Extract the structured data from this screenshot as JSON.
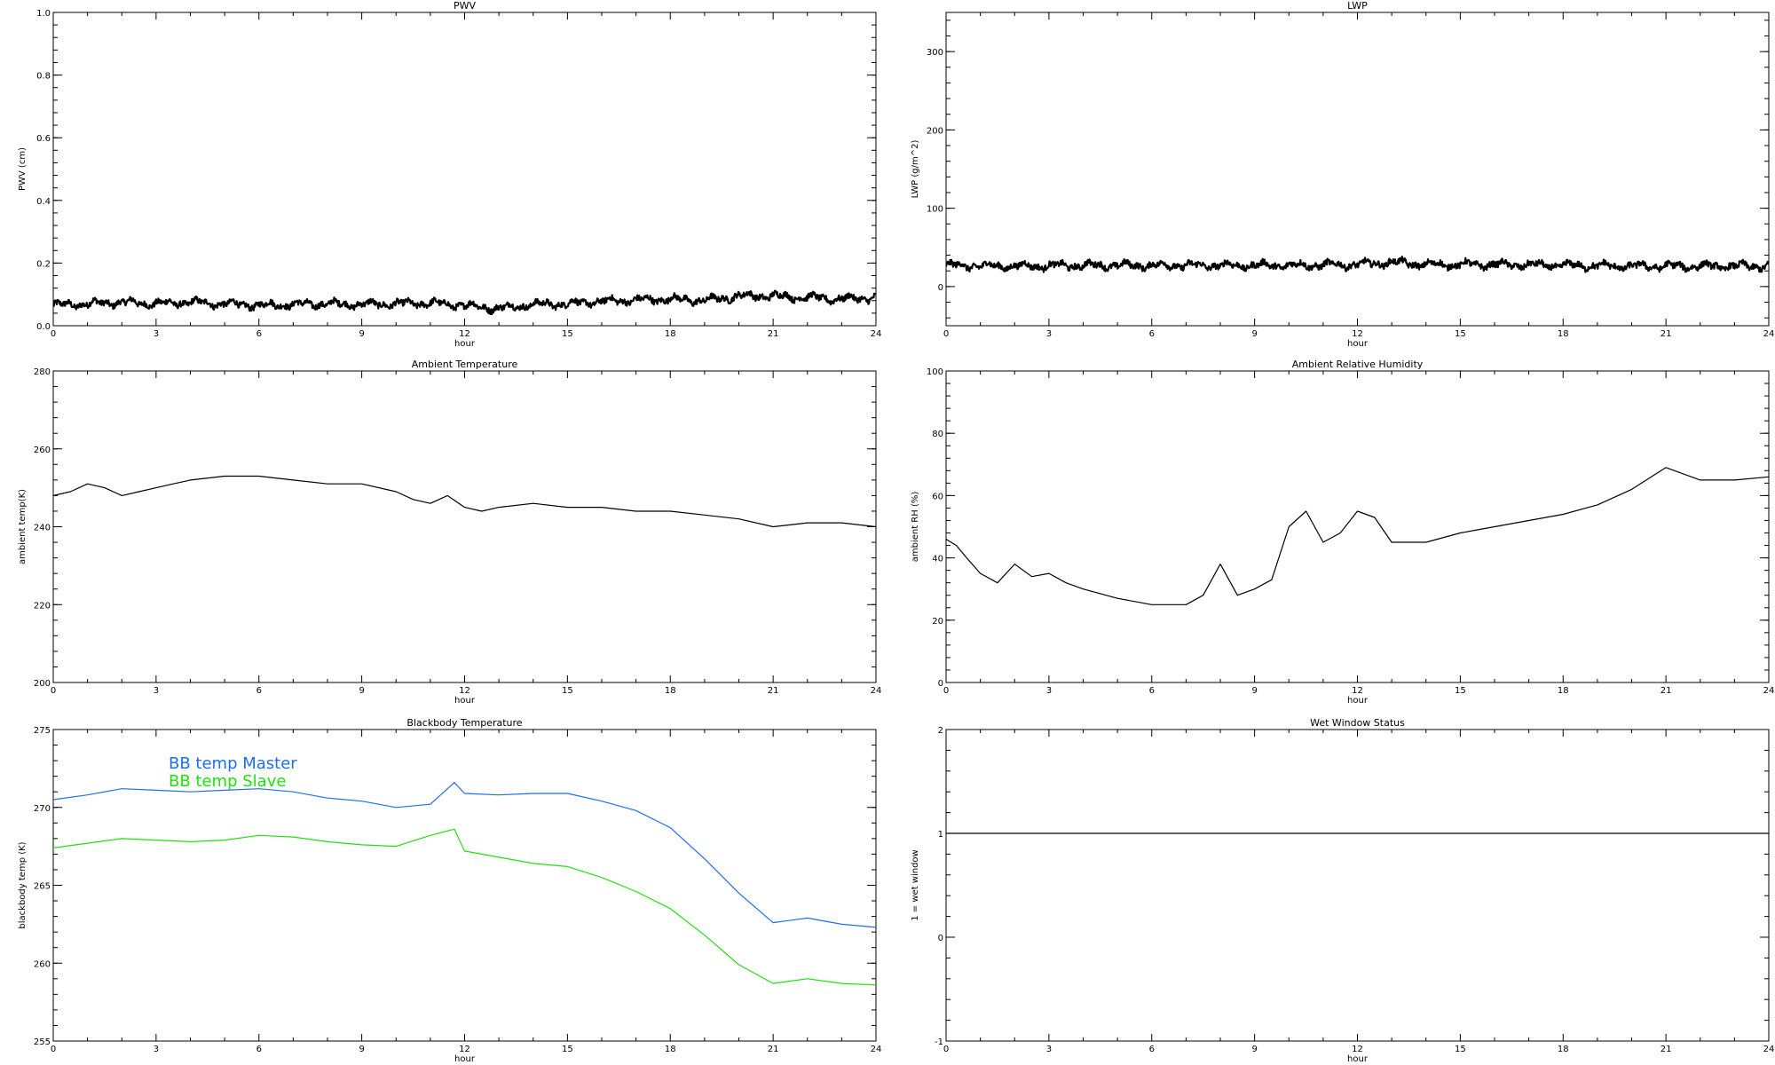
{
  "chart_data": [
    {
      "id": "pwv",
      "type": "line",
      "title": "PWV",
      "xlabel": "hour",
      "ylabel": "PWV (cm)",
      "xlim": [
        0,
        24
      ],
      "ylim": [
        0,
        1.0
      ],
      "xticks": [
        "0",
        "3",
        "6",
        "9",
        "12",
        "15",
        "18",
        "21",
        "24"
      ],
      "yticks": [
        "0.0",
        "0.2",
        "0.4",
        "0.6",
        "0.8",
        "1.0"
      ],
      "style": "noisy",
      "series": [
        {
          "color": "#000000",
          "x": [
            0,
            1,
            2,
            3,
            4,
            5,
            6,
            7,
            8,
            9,
            10,
            11,
            12,
            13,
            14,
            15,
            16,
            17,
            18,
            19,
            20,
            21,
            22,
            23,
            24
          ],
          "y": [
            0.065,
            0.07,
            0.075,
            0.07,
            0.075,
            0.07,
            0.065,
            0.068,
            0.07,
            0.068,
            0.07,
            0.072,
            0.065,
            0.055,
            0.068,
            0.07,
            0.078,
            0.082,
            0.085,
            0.08,
            0.095,
            0.095,
            0.09,
            0.085,
            0.09
          ]
        }
      ]
    },
    {
      "id": "lwp",
      "type": "line",
      "title": "LWP",
      "xlabel": "hour",
      "ylabel": "LWP (g/m^2)",
      "xlim": [
        0,
        24
      ],
      "ylim": [
        -50,
        350
      ],
      "xticks": [
        "0",
        "3",
        "6",
        "9",
        "12",
        "15",
        "18",
        "21",
        "24"
      ],
      "yticks": [
        "0",
        "100",
        "200",
        "300"
      ],
      "style": "noisy",
      "series": [
        {
          "color": "#000000",
          "x": [
            0,
            2,
            4,
            6,
            8,
            10,
            12,
            13,
            14,
            16,
            18,
            20,
            22,
            24
          ],
          "y": [
            27,
            26,
            27,
            27,
            27,
            27,
            28,
            31,
            28,
            28,
            27,
            26,
            26,
            26
          ]
        }
      ]
    },
    {
      "id": "ambient-temp",
      "type": "line",
      "title": "Ambient Temperature",
      "xlabel": "hour",
      "ylabel": "ambient temp(K)",
      "xlim": [
        0,
        24
      ],
      "ylim": [
        200,
        280
      ],
      "xticks": [
        "0",
        "3",
        "6",
        "9",
        "12",
        "15",
        "18",
        "21",
        "24"
      ],
      "yticks": [
        "200",
        "220",
        "240",
        "260",
        "280"
      ],
      "style": "line",
      "series": [
        {
          "color": "#000000",
          "x": [
            0,
            0.5,
            1,
            1.5,
            2,
            2.5,
            3,
            3.5,
            4,
            5,
            6,
            7,
            8,
            9,
            10,
            10.5,
            11,
            11.5,
            12,
            12.5,
            13,
            14,
            15,
            16,
            17,
            18,
            19,
            20,
            21,
            22,
            23,
            24
          ],
          "y": [
            248,
            249,
            251,
            250,
            248,
            249,
            250,
            251,
            252,
            253,
            253,
            252,
            251,
            251,
            249,
            247,
            246,
            248,
            245,
            244,
            245,
            246,
            245,
            245,
            244,
            244,
            243,
            242,
            240,
            241,
            241,
            240
          ]
        }
      ]
    },
    {
      "id": "ambient-rh",
      "type": "line",
      "title": "Ambient Relative Humidity",
      "xlabel": "hour",
      "ylabel": "ambient RH (%)",
      "xlim": [
        0,
        24
      ],
      "ylim": [
        0,
        100
      ],
      "xticks": [
        "0",
        "3",
        "6",
        "9",
        "12",
        "15",
        "18",
        "21",
        "24"
      ],
      "yticks": [
        "0",
        "20",
        "40",
        "60",
        "80",
        "100"
      ],
      "style": "line",
      "series": [
        {
          "color": "#000000",
          "x": [
            0,
            0.3,
            0.6,
            1,
            1.5,
            2,
            2.5,
            3,
            3.5,
            4,
            5,
            6,
            7,
            7.5,
            8,
            8.5,
            9,
            9.5,
            10,
            10.5,
            11,
            11.5,
            12,
            12.5,
            13,
            14,
            15,
            16,
            17,
            18,
            19,
            20,
            21,
            22,
            23,
            24
          ],
          "y": [
            46,
            44,
            40,
            35,
            32,
            38,
            34,
            35,
            32,
            30,
            27,
            25,
            25,
            28,
            38,
            28,
            30,
            33,
            50,
            55,
            45,
            48,
            55,
            53,
            45,
            45,
            48,
            50,
            52,
            54,
            57,
            62,
            69,
            65,
            65,
            66
          ]
        }
      ]
    },
    {
      "id": "blackbody-temp",
      "type": "line",
      "title": "Blackbody Temperature",
      "xlabel": "hour",
      "ylabel": "blackbody temp (K)",
      "xlim": [
        0,
        24
      ],
      "ylim": [
        255,
        275
      ],
      "xticks": [
        "0",
        "3",
        "6",
        "9",
        "12",
        "15",
        "18",
        "21",
        "24"
      ],
      "yticks": [
        "255",
        "260",
        "265",
        "270",
        "275"
      ],
      "style": "line",
      "legend": "top-left",
      "series": [
        {
          "name": "BB temp Master",
          "color": "#1e6ef0",
          "x": [
            0,
            1,
            2,
            3,
            4,
            5,
            6,
            7,
            8,
            9,
            10,
            11,
            11.7,
            12,
            13,
            14,
            15,
            16,
            17,
            18,
            19,
            20,
            21,
            22,
            23,
            24
          ],
          "y": [
            270.5,
            270.8,
            271.2,
            271.1,
            271.0,
            271.1,
            271.2,
            271.0,
            270.6,
            270.4,
            270.0,
            270.2,
            271.6,
            270.9,
            270.8,
            270.9,
            270.9,
            270.4,
            269.8,
            268.7,
            266.7,
            264.5,
            262.6,
            262.9,
            262.5,
            262.3
          ]
        },
        {
          "name": "BB temp Slave",
          "color": "#22e010",
          "x": [
            0,
            1,
            2,
            3,
            4,
            5,
            6,
            7,
            8,
            9,
            10,
            11,
            11.7,
            12,
            13,
            14,
            15,
            16,
            17,
            18,
            19,
            20,
            21,
            22,
            23,
            24
          ],
          "y": [
            267.4,
            267.7,
            268.0,
            267.9,
            267.8,
            267.9,
            268.2,
            268.1,
            267.8,
            267.6,
            267.5,
            268.2,
            268.6,
            267.2,
            266.8,
            266.4,
            266.2,
            265.5,
            264.6,
            263.5,
            261.8,
            259.9,
            258.7,
            259.0,
            258.7,
            258.6
          ]
        }
      ]
    },
    {
      "id": "wet-window",
      "type": "line",
      "title": "Wet Window Status",
      "xlabel": "hour",
      "ylabel": "1 = wet window",
      "xlim": [
        0,
        24
      ],
      "ylim": [
        -1,
        2
      ],
      "xticks": [
        "0",
        "3",
        "6",
        "9",
        "12",
        "15",
        "18",
        "21",
        "24"
      ],
      "yticks": [
        "-1",
        "0",
        "1",
        "2"
      ],
      "style": "line",
      "series": [
        {
          "color": "#000000",
          "x": [
            0,
            24
          ],
          "y": [
            1,
            1
          ]
        }
      ]
    }
  ]
}
